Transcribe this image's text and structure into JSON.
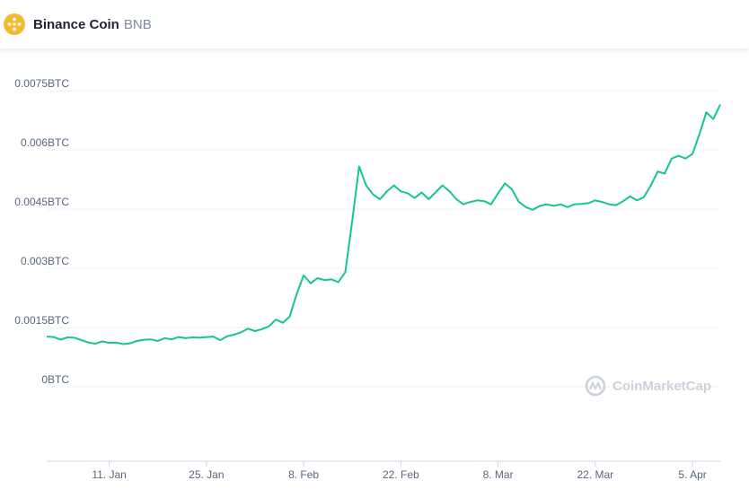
{
  "header": {
    "name": "Binance Coin",
    "symbol": "BNB",
    "logo_icon": "bnb-logo-icon",
    "logo_color": "#f3ba2f"
  },
  "watermark": {
    "text": "CoinMarketCap",
    "icon": "coinmarketcap-logo-icon"
  },
  "colors": {
    "line": "#16c784",
    "grid": "#eff2f5",
    "axis": "#cfd6e4",
    "tick_text": "#58667e"
  },
  "chart_data": {
    "type": "line",
    "title": "",
    "xlabel": "",
    "ylabel": "",
    "y_unit": "BTC",
    "ylim": [
      0,
      0.0075
    ],
    "y_ticks": [
      {
        "value": 0,
        "label": "0BTC"
      },
      {
        "value": 0.0015,
        "label": "0.0015BTC"
      },
      {
        "value": 0.003,
        "label": "0.003BTC"
      },
      {
        "value": 0.0045,
        "label": "0.0045BTC"
      },
      {
        "value": 0.006,
        "label": "0.006BTC"
      },
      {
        "value": 0.0075,
        "label": "0.0075BTC"
      }
    ],
    "xlim": [
      "2021-01-02",
      "2021-04-09"
    ],
    "x_ticks": [
      {
        "date": "2021-01-11",
        "label": "11. Jan"
      },
      {
        "date": "2021-01-25",
        "label": "25. Jan"
      },
      {
        "date": "2021-02-08",
        "label": "8. Feb"
      },
      {
        "date": "2021-02-22",
        "label": "22. Feb"
      },
      {
        "date": "2021-03-08",
        "label": "8. Mar"
      },
      {
        "date": "2021-03-22",
        "label": "22. Mar"
      },
      {
        "date": "2021-04-05",
        "label": "5. Apr"
      }
    ],
    "grid": true,
    "series": [
      {
        "x": [
          "2021-01-02",
          "2021-01-03",
          "2021-01-04",
          "2021-01-05",
          "2021-01-06",
          "2021-01-07",
          "2021-01-08",
          "2021-01-09",
          "2021-01-10",
          "2021-01-11",
          "2021-01-12",
          "2021-01-13",
          "2021-01-14",
          "2021-01-15",
          "2021-01-16",
          "2021-01-17",
          "2021-01-18",
          "2021-01-19",
          "2021-01-20",
          "2021-01-21",
          "2021-01-22",
          "2021-01-23",
          "2021-01-24",
          "2021-01-25",
          "2021-01-26",
          "2021-01-27",
          "2021-01-28",
          "2021-01-29",
          "2021-01-30",
          "2021-01-31",
          "2021-02-01",
          "2021-02-02",
          "2021-02-03",
          "2021-02-04",
          "2021-02-05",
          "2021-02-06",
          "2021-02-07",
          "2021-02-08",
          "2021-02-09",
          "2021-02-10",
          "2021-02-11",
          "2021-02-12",
          "2021-02-13",
          "2021-02-14",
          "2021-02-15",
          "2021-02-16",
          "2021-02-17",
          "2021-02-18",
          "2021-02-19",
          "2021-02-20",
          "2021-02-21",
          "2021-02-22",
          "2021-02-23",
          "2021-02-24",
          "2021-02-25",
          "2021-02-26",
          "2021-02-27",
          "2021-02-28",
          "2021-03-01",
          "2021-03-02",
          "2021-03-03",
          "2021-03-04",
          "2021-03-05",
          "2021-03-06",
          "2021-03-07",
          "2021-03-08",
          "2021-03-09",
          "2021-03-10",
          "2021-03-11",
          "2021-03-12",
          "2021-03-13",
          "2021-03-14",
          "2021-03-15",
          "2021-03-16",
          "2021-03-17",
          "2021-03-18",
          "2021-03-19",
          "2021-03-20",
          "2021-03-21",
          "2021-03-22",
          "2021-03-23",
          "2021-03-24",
          "2021-03-25",
          "2021-03-26",
          "2021-03-27",
          "2021-03-28",
          "2021-03-29",
          "2021-03-30",
          "2021-03-31",
          "2021-04-01",
          "2021-04-02",
          "2021-04-03",
          "2021-04-04",
          "2021-04-05",
          "2021-04-06",
          "2021-04-07",
          "2021-04-08",
          "2021-04-09"
        ],
        "y": [
          0.00127,
          0.00126,
          0.00119,
          0.00125,
          0.00124,
          0.00118,
          0.00112,
          0.00109,
          0.00115,
          0.00111,
          0.00112,
          0.00108,
          0.0011,
          0.00116,
          0.00119,
          0.0012,
          0.00116,
          0.00123,
          0.0012,
          0.00126,
          0.00123,
          0.00125,
          0.00124,
          0.00126,
          0.00127,
          0.00118,
          0.00128,
          0.00132,
          0.00138,
          0.00147,
          0.00141,
          0.00146,
          0.00153,
          0.0017,
          0.00162,
          0.00178,
          0.00235,
          0.00282,
          0.00262,
          0.00275,
          0.0027,
          0.00272,
          0.00265,
          0.0029,
          0.0042,
          0.00558,
          0.0051,
          0.00487,
          0.00475,
          0.00495,
          0.0051,
          0.00495,
          0.0049,
          0.00478,
          0.00492,
          0.00475,
          0.00492,
          0.0051,
          0.00495,
          0.00475,
          0.00462,
          0.00468,
          0.00472,
          0.0047,
          0.00462,
          0.0049,
          0.00515,
          0.005,
          0.00468,
          0.00455,
          0.00448,
          0.00458,
          0.00462,
          0.00458,
          0.00462,
          0.00455,
          0.00462,
          0.00463,
          0.00465,
          0.00472,
          0.00468,
          0.00462,
          0.0046,
          0.0047,
          0.00482,
          0.00472,
          0.0048,
          0.0051,
          0.00545,
          0.0054,
          0.00578,
          0.00585,
          0.00578,
          0.0059,
          0.0064,
          0.00695,
          0.00678,
          0.00715
        ]
      }
    ]
  }
}
